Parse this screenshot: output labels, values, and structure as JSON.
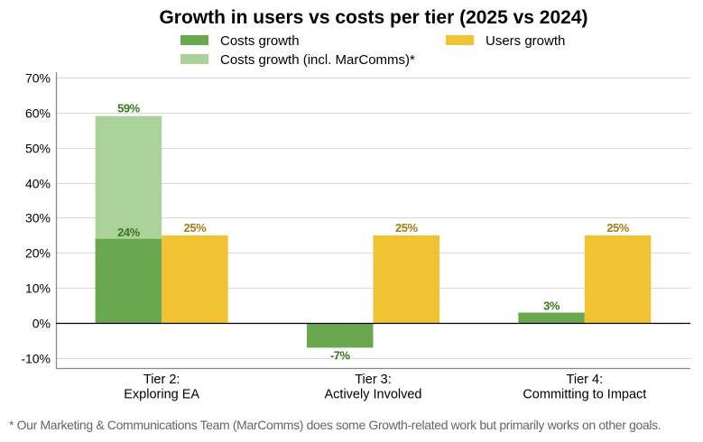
{
  "chart_data": {
    "type": "bar",
    "title": "Growth in users vs costs per tier (2025 vs 2024)",
    "xlabel": "",
    "ylabel": "",
    "ylim": [
      -12.8,
      71.5
    ],
    "yticks": [
      -10,
      0,
      10,
      20,
      30,
      40,
      50,
      60,
      70
    ],
    "ytick_labels": [
      "-10%",
      "0%",
      "10%",
      "20%",
      "30%",
      "40%",
      "50%",
      "60%",
      "70%"
    ],
    "grid": true,
    "legend_position": "top",
    "categories": [
      [
        "Tier 2:",
        "Exploring EA"
      ],
      [
        "Tier 3:",
        "Actively Involved"
      ],
      [
        "Tier 4:",
        "Committing to Impact"
      ]
    ],
    "series": [
      {
        "name": "Costs growth",
        "key": "costs",
        "color": "#6aa84f",
        "label_color": "#38761d",
        "values": [
          24,
          -7,
          3
        ],
        "labels": [
          "24%",
          "-7%",
          "3%"
        ]
      },
      {
        "name": "Costs growth (incl. MarComms)*",
        "key": "costs_marcomms",
        "color": "#aad29a",
        "label_color": "#38761d",
        "values": [
          59,
          null,
          null
        ],
        "labels": [
          "59%",
          null,
          null
        ]
      },
      {
        "name": "Users growth",
        "key": "users",
        "color": "#f1c232",
        "label_color": "#a57d12",
        "values": [
          25,
          25,
          25
        ],
        "labels": [
          "25%",
          "25%",
          "25%"
        ]
      }
    ],
    "legend": [
      {
        "name": "Costs growth",
        "color": "#6aa84f"
      },
      {
        "name": "Users growth",
        "color": "#f1c232"
      },
      {
        "name": "Costs growth (incl. MarComms)*",
        "color": "#aad29a"
      }
    ]
  },
  "footnote": "* Our Marketing & Communications Team (MarComms) does some Growth-related work but primarily works on other goals."
}
